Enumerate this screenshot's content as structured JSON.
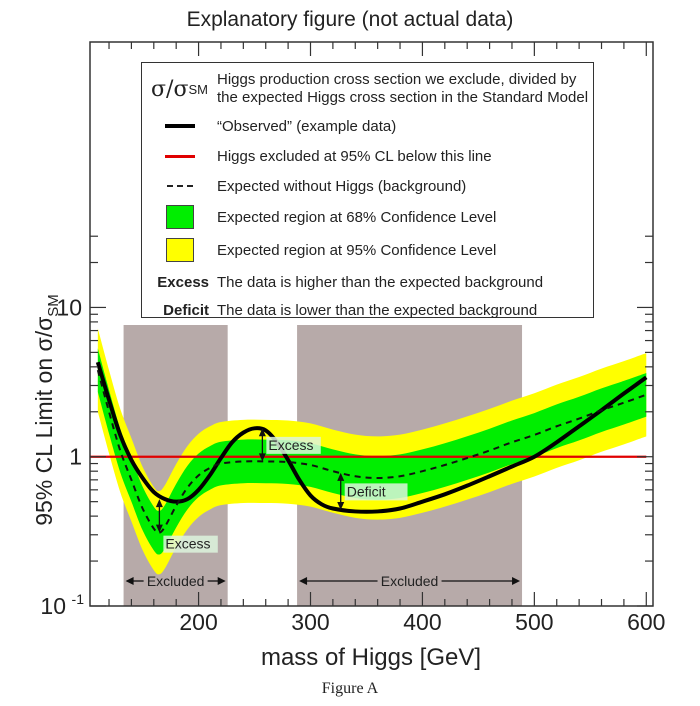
{
  "colors": {
    "observed": "#000000",
    "limit_line": "#e00000",
    "expected": "#111111",
    "band68": "#00ee00",
    "band95": "#ffff00",
    "excluded": "#b7aaa9"
  },
  "legend": {
    "symbol_main": "σ/σ",
    "symbol_sub": "SM",
    "items": [
      {
        "key": "symbol",
        "text_line1": "Higgs production cross section we exclude, divided by",
        "text_line2": "the expected Higgs cross section in the Standard Model"
      },
      {
        "key": "solid-black",
        "text": "“Observed” (example data)"
      },
      {
        "key": "solid-red",
        "text": "Higgs excluded at 95% CL below this line"
      },
      {
        "key": "dashed",
        "text": "Expected without Higgs  (background)"
      },
      {
        "key": "green-box",
        "text": "Expected region at 68% Confidence Level"
      },
      {
        "key": "yellow-box",
        "text": "Expected region at 95% Confidence Level"
      },
      {
        "key": "word",
        "word": "Excess",
        "text": "The data is higher than the expected background"
      },
      {
        "key": "word",
        "word": "Deficit",
        "text": "The data is lower than the expected background"
      }
    ]
  },
  "caption": "Figure A",
  "chart_data": {
    "type": "line",
    "title": "Explanatory figure (not actual data)",
    "xlabel": "mass of Higgs [GeV]",
    "ylabel_main": "95% CL Limit on σ/σ",
    "ylabel_sub": "SM",
    "xlim": [
      103,
      606
    ],
    "ylim": [
      0.1,
      600
    ],
    "yscale": "log",
    "x_ticks": [
      200,
      300,
      400,
      500,
      600
    ],
    "x_tick_labels": [
      "200",
      "300",
      "400",
      "500",
      "600"
    ],
    "x_minor_step": 20,
    "y_tick_labels": [
      {
        "value": 0.1,
        "base": "10",
        "exp": "-1"
      },
      {
        "value": 1,
        "base": "1",
        "exp": ""
      },
      {
        "value": 10,
        "base": "10",
        "exp": ""
      }
    ],
    "y_minor_max": 30,
    "grid": false,
    "limit_line": 1,
    "series": [
      {
        "name": "Observed",
        "style": "solid-black",
        "x": [
          110,
          120,
          130,
          140,
          150,
          160,
          170,
          180,
          190,
          200,
          210,
          220,
          230,
          240,
          250,
          260,
          270,
          280,
          290,
          300,
          310,
          320,
          340,
          360,
          380,
          400,
          420,
          440,
          460,
          480,
          500,
          520,
          540,
          560,
          580,
          600
        ],
        "y": [
          4.3,
          2.4,
          1.4,
          0.95,
          0.72,
          0.58,
          0.52,
          0.5,
          0.52,
          0.6,
          0.75,
          0.98,
          1.25,
          1.45,
          1.55,
          1.5,
          1.25,
          0.95,
          0.7,
          0.55,
          0.48,
          0.45,
          0.43,
          0.43,
          0.45,
          0.5,
          0.56,
          0.64,
          0.74,
          0.86,
          1.0,
          1.25,
          1.6,
          2.05,
          2.65,
          3.4
        ]
      },
      {
        "name": "Expected",
        "style": "dashed",
        "x": [
          110,
          120,
          130,
          140,
          150,
          160,
          165,
          170,
          180,
          190,
          200,
          210,
          220,
          240,
          260,
          280,
          300,
          320,
          340,
          360,
          380,
          400,
          420,
          440,
          460,
          480,
          500,
          520,
          540,
          560,
          580,
          600
        ],
        "y": [
          3.8,
          2.0,
          1.1,
          0.7,
          0.45,
          0.33,
          0.31,
          0.34,
          0.47,
          0.62,
          0.75,
          0.84,
          0.9,
          0.93,
          0.93,
          0.92,
          0.88,
          0.8,
          0.74,
          0.72,
          0.74,
          0.8,
          0.88,
          0.98,
          1.1,
          1.25,
          1.4,
          1.6,
          1.8,
          2.05,
          2.3,
          2.6
        ]
      }
    ],
    "bands": [
      {
        "name": "95% CL",
        "factor": 1.9
      },
      {
        "name": "68% CL",
        "factor": 1.4
      }
    ],
    "excluded_regions": [
      {
        "from": 133,
        "to": 226,
        "label": "Excluded"
      },
      {
        "from": 288,
        "to": 489,
        "label": "Excluded"
      }
    ],
    "annotations": [
      {
        "text": "Excess",
        "x": 165,
        "from": 0.31,
        "to": 0.52
      },
      {
        "text": "Excess",
        "x": 257,
        "from": 0.93,
        "to": 1.55
      },
      {
        "text": "Deficit",
        "x": 327,
        "from": 0.44,
        "to": 0.78
      }
    ]
  }
}
